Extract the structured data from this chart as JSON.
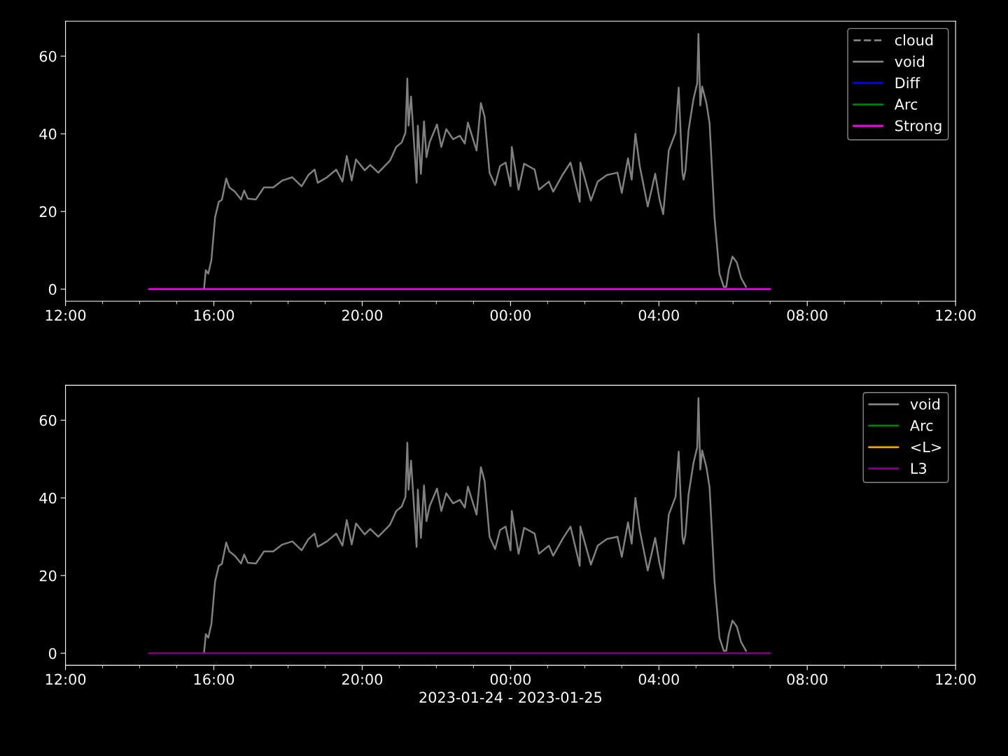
{
  "chart_data": [
    {
      "type": "line",
      "xlim": [
        "2023-01-24T12:00",
        "2023-01-25T12:00"
      ],
      "ylim": [
        -3.1,
        69.0
      ],
      "yticks": [
        0,
        20,
        40,
        60
      ],
      "xticks": [
        {
          "value": "2023-01-24T12:00",
          "label": "12:00"
        },
        {
          "value": "2023-01-24T13:00",
          "label": null
        },
        {
          "value": "2023-01-24T14:00",
          "label": null
        },
        {
          "value": "2023-01-24T15:00",
          "label": null
        },
        {
          "value": "2023-01-24T16:00",
          "label": "16:00"
        },
        {
          "value": "2023-01-24T17:00",
          "label": null
        },
        {
          "value": "2023-01-24T18:00",
          "label": null
        },
        {
          "value": "2023-01-24T19:00",
          "label": null
        },
        {
          "value": "2023-01-24T20:00",
          "label": "20:00"
        },
        {
          "value": "2023-01-24T21:00",
          "label": null
        },
        {
          "value": "2023-01-24T22:00",
          "label": null
        },
        {
          "value": "2023-01-24T23:00",
          "label": null
        },
        {
          "value": "2023-01-25T00:00",
          "label": "00:00"
        },
        {
          "value": "2023-01-25T01:00",
          "label": null
        },
        {
          "value": "2023-01-25T02:00",
          "label": null
        },
        {
          "value": "2023-01-25T03:00",
          "label": null
        },
        {
          "value": "2023-01-25T04:00",
          "label": "04:00"
        },
        {
          "value": "2023-01-25T05:00",
          "label": null
        },
        {
          "value": "2023-01-25T06:00",
          "label": null
        },
        {
          "value": "2023-01-25T07:00",
          "label": null
        },
        {
          "value": "2023-01-25T08:00",
          "label": "08:00"
        },
        {
          "value": "2023-01-25T09:00",
          "label": null
        },
        {
          "value": "2023-01-25T10:00",
          "label": null
        },
        {
          "value": "2023-01-25T11:00",
          "label": null
        },
        {
          "value": "2023-01-25T12:00",
          "label": "12:00"
        }
      ],
      "legend": "top right",
      "grid": false,
      "marker": "none",
      "series": [
        {
          "name": "cloud",
          "color": "#808080",
          "line_style": "dashed"
        },
        {
          "name": "void",
          "color": "#808080",
          "line_style": "solid",
          "x": [
            "2023-01-24T15:44",
            "2023-01-24T15:47",
            "2023-01-24T15:51",
            "2023-01-24T15:56",
            "2023-01-24T16:02",
            "2023-01-24T16:08",
            "2023-01-24T16:13",
            "2023-01-24T16:20",
            "2023-01-24T16:25",
            "2023-01-24T16:34",
            "2023-01-24T16:44",
            "2023-01-24T16:49",
            "2023-01-24T16:55",
            "2023-01-24T17:08",
            "2023-01-24T17:21",
            "2023-01-24T17:36",
            "2023-01-24T17:51",
            "2023-01-24T18:07",
            "2023-01-24T18:22",
            "2023-01-24T18:33",
            "2023-01-24T18:43",
            "2023-01-24T18:48",
            "2023-01-24T19:03",
            "2023-01-24T19:18",
            "2023-01-24T19:28",
            "2023-01-24T19:35",
            "2023-01-24T19:43",
            "2023-01-24T19:50",
            "2023-01-24T20:04",
            "2023-01-24T20:13",
            "2023-01-24T20:26",
            "2023-01-24T20:45",
            "2023-01-24T20:55",
            "2023-01-24T21:04",
            "2023-01-24T21:10",
            "2023-01-24T21:13",
            "2023-01-24T21:15",
            "2023-01-24T21:19",
            "2023-01-24T21:28",
            "2023-01-24T21:30",
            "2023-01-24T21:35",
            "2023-01-24T21:40",
            "2023-01-24T21:44",
            "2023-01-24T21:49",
            "2023-01-24T22:01",
            "2023-01-24T22:08",
            "2023-01-24T22:16",
            "2023-01-24T22:27",
            "2023-01-24T22:38",
            "2023-01-24T22:46",
            "2023-01-24T22:51",
            "2023-01-24T23:05",
            "2023-01-24T23:12",
            "2023-01-24T23:18",
            "2023-01-24T23:26",
            "2023-01-24T23:35",
            "2023-01-24T23:43",
            "2023-01-24T23:52",
            "2023-01-25T00:00",
            "2023-01-25T00:02",
            "2023-01-25T00:13",
            "2023-01-25T00:22",
            "2023-01-25T00:39",
            "2023-01-25T00:46",
            "2023-01-25T01:02",
            "2023-01-25T01:09",
            "2023-01-25T01:24",
            "2023-01-25T01:37",
            "2023-01-25T01:52",
            "2023-01-25T01:53",
            "2023-01-25T02:10",
            "2023-01-25T02:21",
            "2023-01-25T02:36",
            "2023-01-25T02:53",
            "2023-01-25T03:00",
            "2023-01-25T03:10",
            "2023-01-25T03:16",
            "2023-01-25T03:22",
            "2023-01-25T03:29",
            "2023-01-25T03:42",
            "2023-01-25T03:54",
            "2023-01-25T04:01",
            "2023-01-25T04:07",
            "2023-01-25T04:16",
            "2023-01-25T04:27",
            "2023-01-25T04:32",
            "2023-01-25T04:38",
            "2023-01-25T04:40",
            "2023-01-25T04:43",
            "2023-01-25T04:48",
            "2023-01-25T04:56",
            "2023-01-25T05:02",
            "2023-01-25T05:04",
            "2023-01-25T05:07",
            "2023-01-25T05:10",
            "2023-01-25T05:17",
            "2023-01-25T05:22",
            "2023-01-25T05:30",
            "2023-01-25T05:38",
            "2023-01-25T05:45",
            "2023-01-25T05:49",
            "2023-01-25T05:53",
            "2023-01-25T05:59",
            "2023-01-25T06:06",
            "2023-01-25T06:13",
            "2023-01-25T06:21"
          ],
          "values": [
            0,
            4.9,
            4.0,
            7.5,
            18.5,
            22.5,
            23,
            28.5,
            26.2,
            25.1,
            23.1,
            25.4,
            23.3,
            23.1,
            26.2,
            26.2,
            28.0,
            28.8,
            26.5,
            29.4,
            30.8,
            27.4,
            28.8,
            30.8,
            27.7,
            34.3,
            28.0,
            33.4,
            30.6,
            32.0,
            30.0,
            33.1,
            36.6,
            37.8,
            40.3,
            54.2,
            42.1,
            49.6,
            27.4,
            42.1,
            29.7,
            43.2,
            34.0,
            37.8,
            42.4,
            36.6,
            41.2,
            38.6,
            39.5,
            37.5,
            42.9,
            35.7,
            47.9,
            44.4,
            30.0,
            26.8,
            31.7,
            32.6,
            26.5,
            36.6,
            25.6,
            32.3,
            30.8,
            25.6,
            27.7,
            25.1,
            29.4,
            32.6,
            22.5,
            32.6,
            22.8,
            27.7,
            29.4,
            30.0,
            24.8,
            33.7,
            28.2,
            40.0,
            31.7,
            21.3,
            29.7,
            23.1,
            19.3,
            35.7,
            40.3,
            51.9,
            30.0,
            28.2,
            30.6,
            40.9,
            49.0,
            53.0,
            65.7,
            47.3,
            52.2,
            47.8,
            42.7,
            18.5,
            4.0,
            0.6,
            0.6,
            4.9,
            8.4,
            6.9,
            2.9,
            0.6
          ]
        },
        {
          "name": "Diff",
          "color": "#0000ff",
          "line_style": "solid"
        },
        {
          "name": "Arc",
          "color": "#008000",
          "line_style": "solid"
        },
        {
          "name": "Strong",
          "color": "#ff00ff",
          "line_style": "solid",
          "x": [
            "2023-01-24T14:15",
            "2023-01-25T07:00"
          ],
          "values": [
            0,
            0
          ]
        }
      ]
    },
    {
      "type": "line",
      "xlabel": "2023-01-24 - 2023-01-25",
      "xlim": [
        "2023-01-24T12:00",
        "2023-01-25T12:00"
      ],
      "ylim": [
        -3.1,
        69.0
      ],
      "yticks": [
        0,
        20,
        40,
        60
      ],
      "xticks": [
        {
          "value": "2023-01-24T12:00",
          "label": "12:00"
        },
        {
          "value": "2023-01-24T13:00",
          "label": null
        },
        {
          "value": "2023-01-24T14:00",
          "label": null
        },
        {
          "value": "2023-01-24T15:00",
          "label": null
        },
        {
          "value": "2023-01-24T16:00",
          "label": "16:00"
        },
        {
          "value": "2023-01-24T17:00",
          "label": null
        },
        {
          "value": "2023-01-24T18:00",
          "label": null
        },
        {
          "value": "2023-01-24T19:00",
          "label": null
        },
        {
          "value": "2023-01-24T20:00",
          "label": "20:00"
        },
        {
          "value": "2023-01-24T21:00",
          "label": null
        },
        {
          "value": "2023-01-24T22:00",
          "label": null
        },
        {
          "value": "2023-01-24T23:00",
          "label": null
        },
        {
          "value": "2023-01-25T00:00",
          "label": "00:00"
        },
        {
          "value": "2023-01-25T01:00",
          "label": null
        },
        {
          "value": "2023-01-25T02:00",
          "label": null
        },
        {
          "value": "2023-01-25T03:00",
          "label": null
        },
        {
          "value": "2023-01-25T04:00",
          "label": "04:00"
        },
        {
          "value": "2023-01-25T05:00",
          "label": null
        },
        {
          "value": "2023-01-25T06:00",
          "label": null
        },
        {
          "value": "2023-01-25T07:00",
          "label": null
        },
        {
          "value": "2023-01-25T08:00",
          "label": "08:00"
        },
        {
          "value": "2023-01-25T09:00",
          "label": null
        },
        {
          "value": "2023-01-25T10:00",
          "label": null
        },
        {
          "value": "2023-01-25T11:00",
          "label": null
        },
        {
          "value": "2023-01-25T12:00",
          "label": "12:00"
        }
      ],
      "legend": "top right",
      "grid": false,
      "marker": "none",
      "series": [
        {
          "name": "void",
          "color": "#808080",
          "line_style": "solid",
          "x": [
            "2023-01-24T15:44",
            "2023-01-24T15:47",
            "2023-01-24T15:51",
            "2023-01-24T15:56",
            "2023-01-24T16:02",
            "2023-01-24T16:08",
            "2023-01-24T16:13",
            "2023-01-24T16:20",
            "2023-01-24T16:25",
            "2023-01-24T16:34",
            "2023-01-24T16:44",
            "2023-01-24T16:49",
            "2023-01-24T16:55",
            "2023-01-24T17:08",
            "2023-01-24T17:21",
            "2023-01-24T17:36",
            "2023-01-24T17:51",
            "2023-01-24T18:07",
            "2023-01-24T18:22",
            "2023-01-24T18:33",
            "2023-01-24T18:43",
            "2023-01-24T18:48",
            "2023-01-24T19:03",
            "2023-01-24T19:18",
            "2023-01-24T19:28",
            "2023-01-24T19:35",
            "2023-01-24T19:43",
            "2023-01-24T19:50",
            "2023-01-24T20:04",
            "2023-01-24T20:13",
            "2023-01-24T20:26",
            "2023-01-24T20:45",
            "2023-01-24T20:55",
            "2023-01-24T21:04",
            "2023-01-24T21:10",
            "2023-01-24T21:13",
            "2023-01-24T21:15",
            "2023-01-24T21:19",
            "2023-01-24T21:28",
            "2023-01-24T21:30",
            "2023-01-24T21:35",
            "2023-01-24T21:40",
            "2023-01-24T21:44",
            "2023-01-24T21:49",
            "2023-01-24T22:01",
            "2023-01-24T22:08",
            "2023-01-24T22:16",
            "2023-01-24T22:27",
            "2023-01-24T22:38",
            "2023-01-24T22:46",
            "2023-01-24T22:51",
            "2023-01-24T23:05",
            "2023-01-24T23:12",
            "2023-01-24T23:18",
            "2023-01-24T23:26",
            "2023-01-24T23:35",
            "2023-01-24T23:43",
            "2023-01-24T23:52",
            "2023-01-25T00:00",
            "2023-01-25T00:02",
            "2023-01-25T00:13",
            "2023-01-25T00:22",
            "2023-01-25T00:39",
            "2023-01-25T00:46",
            "2023-01-25T01:02",
            "2023-01-25T01:09",
            "2023-01-25T01:24",
            "2023-01-25T01:37",
            "2023-01-25T01:52",
            "2023-01-25T01:53",
            "2023-01-25T02:10",
            "2023-01-25T02:21",
            "2023-01-25T02:36",
            "2023-01-25T02:53",
            "2023-01-25T03:00",
            "2023-01-25T03:10",
            "2023-01-25T03:16",
            "2023-01-25T03:22",
            "2023-01-25T03:29",
            "2023-01-25T03:42",
            "2023-01-25T03:54",
            "2023-01-25T04:01",
            "2023-01-25T04:07",
            "2023-01-25T04:16",
            "2023-01-25T04:27",
            "2023-01-25T04:32",
            "2023-01-25T04:38",
            "2023-01-25T04:40",
            "2023-01-25T04:43",
            "2023-01-25T04:48",
            "2023-01-25T04:56",
            "2023-01-25T05:02",
            "2023-01-25T05:04",
            "2023-01-25T05:07",
            "2023-01-25T05:10",
            "2023-01-25T05:17",
            "2023-01-25T05:22",
            "2023-01-25T05:30",
            "2023-01-25T05:38",
            "2023-01-25T05:45",
            "2023-01-25T05:49",
            "2023-01-25T05:53",
            "2023-01-25T05:59",
            "2023-01-25T06:06",
            "2023-01-25T06:13",
            "2023-01-25T06:21"
          ],
          "values": [
            0,
            4.9,
            4.0,
            7.5,
            18.5,
            22.5,
            23,
            28.5,
            26.2,
            25.1,
            23.1,
            25.4,
            23.3,
            23.1,
            26.2,
            26.2,
            28.0,
            28.8,
            26.5,
            29.4,
            30.8,
            27.4,
            28.8,
            30.8,
            27.7,
            34.3,
            28.0,
            33.4,
            30.6,
            32.0,
            30.0,
            33.1,
            36.6,
            37.8,
            40.3,
            54.2,
            42.1,
            49.6,
            27.4,
            42.1,
            29.7,
            43.2,
            34.0,
            37.8,
            42.4,
            36.6,
            41.2,
            38.6,
            39.5,
            37.5,
            42.9,
            35.7,
            47.9,
            44.4,
            30.0,
            26.8,
            31.7,
            32.6,
            26.5,
            36.6,
            25.6,
            32.3,
            30.8,
            25.6,
            27.7,
            25.1,
            29.4,
            32.6,
            22.5,
            32.6,
            22.8,
            27.7,
            29.4,
            30.0,
            24.8,
            33.7,
            28.2,
            40.0,
            31.7,
            21.3,
            29.7,
            23.1,
            19.3,
            35.7,
            40.3,
            51.9,
            30.0,
            28.2,
            30.6,
            40.9,
            49.0,
            53.0,
            65.7,
            47.3,
            52.2,
            47.8,
            42.7,
            18.5,
            4.0,
            0.6,
            0.6,
            4.9,
            8.4,
            6.9,
            2.9,
            0.6
          ]
        },
        {
          "name": "Arc",
          "color": "#008000",
          "line_style": "solid"
        },
        {
          "name": "<L>",
          "color": "#ffa500",
          "line_style": "solid"
        },
        {
          "name": "L3",
          "color": "#800080",
          "line_style": "solid",
          "x": [
            "2023-01-24T14:15",
            "2023-01-25T07:00"
          ],
          "values": [
            0,
            0
          ]
        }
      ]
    }
  ]
}
